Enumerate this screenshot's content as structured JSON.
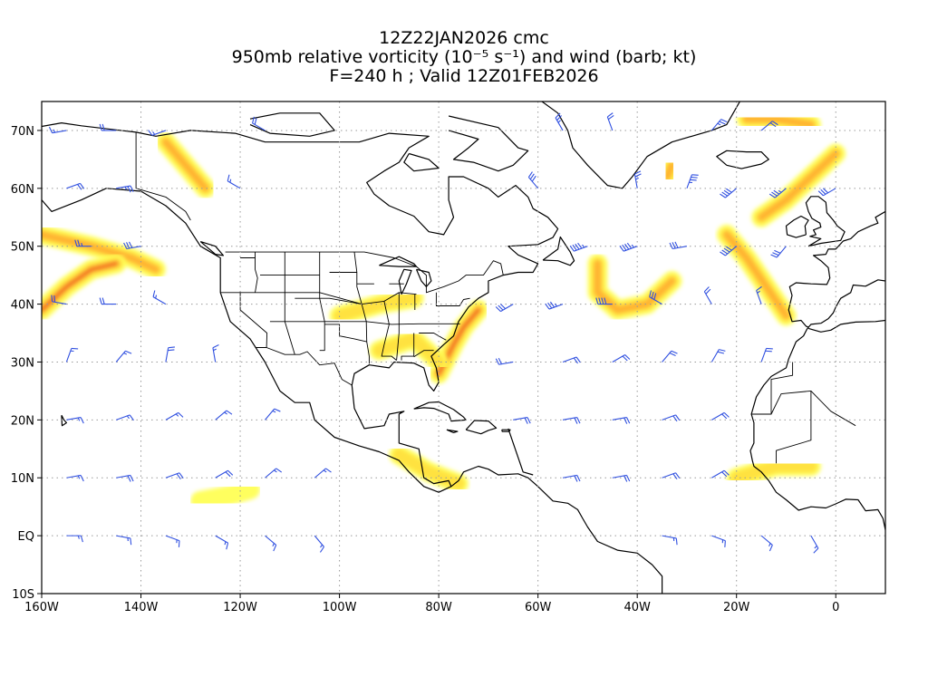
{
  "header": {
    "line1": "12Z22JAN2026 cmc",
    "line2": "950mb relative vorticity (10⁻⁵ s⁻¹) and wind (barb; kt)",
    "line3": "F=240 h ; Valid 12Z01FEB2026"
  },
  "axes": {
    "lon_labels": [
      "160W",
      "140W",
      "120W",
      "100W",
      "80W",
      "60W",
      "40W",
      "20W",
      "0"
    ],
    "lon_values": [
      -160,
      -140,
      -120,
      -100,
      -80,
      -60,
      -40,
      -20,
      0
    ],
    "lat_labels": [
      "70N",
      "60N",
      "50N",
      "40N",
      "30N",
      "20N",
      "10N",
      "EQ",
      "10S"
    ],
    "lat_values": [
      70,
      60,
      50,
      40,
      30,
      20,
      10,
      0,
      -10
    ],
    "lon_range": [
      -160,
      10
    ],
    "lat_range": [
      -10,
      75
    ],
    "grid": true
  },
  "colors": {
    "shade_low": "#ffff55",
    "shade_mid": "#ffe040",
    "shade_high": "#ffb030",
    "shade_max": "#f06020",
    "barb": "#3050e0",
    "coast": "#000000",
    "grid": "#999999"
  },
  "vorticity_features": [
    {
      "id": "alaska-gulf-band",
      "points": [
        [
          -160,
          52
        ],
        [
          -150,
          50
        ],
        [
          -142,
          48
        ],
        [
          -137,
          46
        ]
      ],
      "level": 3
    },
    {
      "id": "north-pacific-band",
      "points": [
        [
          -160,
          39
        ],
        [
          -155,
          43
        ],
        [
          -150,
          46
        ],
        [
          -145,
          47
        ]
      ],
      "level": 4
    },
    {
      "id": "bering-band",
      "points": [
        [
          -135,
          68
        ],
        [
          -130,
          63
        ],
        [
          -127,
          60
        ]
      ],
      "level": 3
    },
    {
      "id": "us-east-coast-band",
      "points": [
        [
          -80,
          28
        ],
        [
          -77,
          33
        ],
        [
          -75,
          36
        ],
        [
          -72,
          39
        ]
      ],
      "level": 4
    },
    {
      "id": "atlantic-hook",
      "points": [
        [
          -48,
          47
        ],
        [
          -48,
          42
        ],
        [
          -44,
          39
        ],
        [
          -38,
          40
        ],
        [
          -33,
          44
        ]
      ],
      "level": 3
    },
    {
      "id": "iceland-diagonal",
      "points": [
        [
          -15,
          55
        ],
        [
          -10,
          58
        ],
        [
          -5,
          62
        ],
        [
          0,
          66
        ]
      ],
      "level": 3
    },
    {
      "id": "azores-diagonal",
      "points": [
        [
          -22,
          52
        ],
        [
          -18,
          48
        ],
        [
          -14,
          43
        ],
        [
          -10,
          38
        ]
      ],
      "level": 3
    },
    {
      "id": "greenland-east",
      "points": [
        [
          -34,
          62
        ],
        [
          -33,
          64
        ]
      ],
      "level": 3
    },
    {
      "id": "arctic-north",
      "points": [
        [
          -18,
          72
        ],
        [
          -12,
          72
        ],
        [
          -5,
          71
        ]
      ],
      "level": 3
    },
    {
      "id": "florida-gulf",
      "points": [
        [
          -92,
          32
        ],
        [
          -85,
          34
        ],
        [
          -80,
          30
        ]
      ],
      "level": 2
    },
    {
      "id": "midwest-band",
      "points": [
        [
          -100,
          38
        ],
        [
          -92,
          40
        ],
        [
          -85,
          41
        ]
      ],
      "level": 2
    },
    {
      "id": "central-america",
      "points": [
        [
          -88,
          14
        ],
        [
          -82,
          11
        ],
        [
          -76,
          9
        ]
      ],
      "level": 2
    },
    {
      "id": "eastern-pacific-strip",
      "points": [
        [
          -128,
          6
        ],
        [
          -122,
          7
        ],
        [
          -118,
          8
        ]
      ],
      "level": 1
    },
    {
      "id": "west-africa",
      "points": [
        [
          -20,
          10
        ],
        [
          -12,
          12
        ],
        [
          -5,
          12
        ]
      ],
      "level": 2
    }
  ],
  "wind_barbs": [
    {
      "lon": -155,
      "lat": 70,
      "dir": 260,
      "spd": 15
    },
    {
      "lon": -145,
      "lat": 70,
      "dir": 270,
      "spd": 20
    },
    {
      "lon": -135,
      "lat": 70,
      "dir": 250,
      "spd": 15
    },
    {
      "lon": -115,
      "lat": 70,
      "dir": 300,
      "spd": 20
    },
    {
      "lon": -55,
      "lat": 70,
      "dir": 330,
      "spd": 25
    },
    {
      "lon": -45,
      "lat": 70,
      "dir": 340,
      "spd": 20
    },
    {
      "lon": -25,
      "lat": 70,
      "dir": 40,
      "spd": 25
    },
    {
      "lon": -15,
      "lat": 70,
      "dir": 50,
      "spd": 20
    },
    {
      "lon": -155,
      "lat": 60,
      "dir": 70,
      "spd": 20
    },
    {
      "lon": -145,
      "lat": 60,
      "dir": 80,
      "spd": 25
    },
    {
      "lon": -120,
      "lat": 60,
      "dir": 300,
      "spd": 15
    },
    {
      "lon": -60,
      "lat": 60,
      "dir": 320,
      "spd": 30
    },
    {
      "lon": -40,
      "lat": 60,
      "dir": 350,
      "spd": 25
    },
    {
      "lon": -30,
      "lat": 60,
      "dir": 20,
      "spd": 35
    },
    {
      "lon": -20,
      "lat": 60,
      "dir": 230,
      "spd": 40
    },
    {
      "lon": -10,
      "lat": 60,
      "dir": 230,
      "spd": 35
    },
    {
      "lon": 0,
      "lat": 60,
      "dir": 240,
      "spd": 30
    },
    {
      "lon": -150,
      "lat": 50,
      "dir": 270,
      "spd": 25
    },
    {
      "lon": -140,
      "lat": 50,
      "dir": 260,
      "spd": 30
    },
    {
      "lon": -50,
      "lat": 50,
      "dir": 250,
      "spd": 45
    },
    {
      "lon": -40,
      "lat": 50,
      "dir": 250,
      "spd": 45
    },
    {
      "lon": -30,
      "lat": 50,
      "dir": 260,
      "spd": 30
    },
    {
      "lon": -20,
      "lat": 50,
      "dir": 230,
      "spd": 40
    },
    {
      "lon": -10,
      "lat": 50,
      "dir": 220,
      "spd": 30
    },
    {
      "lon": -155,
      "lat": 40,
      "dir": 280,
      "spd": 20
    },
    {
      "lon": -145,
      "lat": 40,
      "dir": 270,
      "spd": 20
    },
    {
      "lon": -135,
      "lat": 40,
      "dir": 300,
      "spd": 15
    },
    {
      "lon": -65,
      "lat": 40,
      "dir": 240,
      "spd": 30
    },
    {
      "lon": -55,
      "lat": 40,
      "dir": 250,
      "spd": 35
    },
    {
      "lon": -45,
      "lat": 40,
      "dir": 270,
      "spd": 40
    },
    {
      "lon": -35,
      "lat": 40,
      "dir": 300,
      "spd": 30
    },
    {
      "lon": -25,
      "lat": 40,
      "dir": 330,
      "spd": 20
    },
    {
      "lon": -15,
      "lat": 40,
      "dir": 340,
      "spd": 15
    },
    {
      "lon": -155,
      "lat": 30,
      "dir": 20,
      "spd": 15
    },
    {
      "lon": -145,
      "lat": 30,
      "dir": 40,
      "spd": 15
    },
    {
      "lon": -135,
      "lat": 30,
      "dir": 10,
      "spd": 20
    },
    {
      "lon": -125,
      "lat": 30,
      "dir": 350,
      "spd": 15
    },
    {
      "lon": -65,
      "lat": 30,
      "dir": 260,
      "spd": 20
    },
    {
      "lon": -55,
      "lat": 30,
      "dir": 70,
      "spd": 20
    },
    {
      "lon": -45,
      "lat": 30,
      "dir": 60,
      "spd": 20
    },
    {
      "lon": -35,
      "lat": 30,
      "dir": 40,
      "spd": 20
    },
    {
      "lon": -25,
      "lat": 30,
      "dir": 30,
      "spd": 20
    },
    {
      "lon": -15,
      "lat": 30,
      "dir": 20,
      "spd": 20
    },
    {
      "lon": -155,
      "lat": 20,
      "dir": 80,
      "spd": 15
    },
    {
      "lon": -145,
      "lat": 20,
      "dir": 70,
      "spd": 15
    },
    {
      "lon": -135,
      "lat": 20,
      "dir": 60,
      "spd": 15
    },
    {
      "lon": -125,
      "lat": 20,
      "dir": 50,
      "spd": 15
    },
    {
      "lon": -115,
      "lat": 20,
      "dir": 40,
      "spd": 15
    },
    {
      "lon": -65,
      "lat": 20,
      "dir": 80,
      "spd": 20
    },
    {
      "lon": -55,
      "lat": 20,
      "dir": 80,
      "spd": 20
    },
    {
      "lon": -45,
      "lat": 20,
      "dir": 80,
      "spd": 20
    },
    {
      "lon": -35,
      "lat": 20,
      "dir": 70,
      "spd": 20
    },
    {
      "lon": -25,
      "lat": 20,
      "dir": 60,
      "spd": 20
    },
    {
      "lon": -155,
      "lat": 10,
      "dir": 80,
      "spd": 15
    },
    {
      "lon": -145,
      "lat": 10,
      "dir": 80,
      "spd": 20
    },
    {
      "lon": -135,
      "lat": 10,
      "dir": 70,
      "spd": 20
    },
    {
      "lon": -125,
      "lat": 10,
      "dir": 60,
      "spd": 20
    },
    {
      "lon": -115,
      "lat": 10,
      "dir": 50,
      "spd": 15
    },
    {
      "lon": -105,
      "lat": 10,
      "dir": 50,
      "spd": 15
    },
    {
      "lon": -55,
      "lat": 10,
      "dir": 80,
      "spd": 20
    },
    {
      "lon": -45,
      "lat": 10,
      "dir": 80,
      "spd": 20
    },
    {
      "lon": -35,
      "lat": 10,
      "dir": 70,
      "spd": 20
    },
    {
      "lon": -25,
      "lat": 10,
      "dir": 60,
      "spd": 20
    },
    {
      "lon": -155,
      "lat": 0,
      "dir": 90,
      "spd": 15
    },
    {
      "lon": -145,
      "lat": 0,
      "dir": 100,
      "spd": 15
    },
    {
      "lon": -135,
      "lat": 0,
      "dir": 110,
      "spd": 15
    },
    {
      "lon": -125,
      "lat": 0,
      "dir": 120,
      "spd": 15
    },
    {
      "lon": -115,
      "lat": 0,
      "dir": 130,
      "spd": 15
    },
    {
      "lon": -105,
      "lat": 0,
      "dir": 140,
      "spd": 15
    },
    {
      "lon": -35,
      "lat": 0,
      "dir": 100,
      "spd": 15
    },
    {
      "lon": -25,
      "lat": 0,
      "dir": 110,
      "spd": 15
    },
    {
      "lon": -15,
      "lat": 0,
      "dir": 130,
      "spd": 15
    },
    {
      "lon": -5,
      "lat": 0,
      "dir": 150,
      "spd": 15
    }
  ]
}
